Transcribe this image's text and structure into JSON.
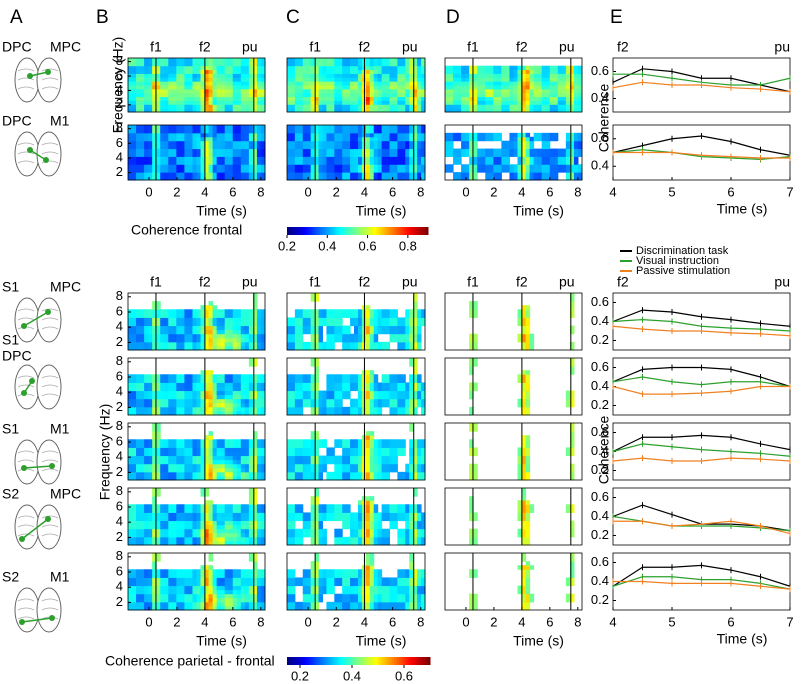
{
  "panel_labels": [
    "A",
    "B",
    "C",
    "D",
    "E"
  ],
  "pairs": [
    {
      "left": "DPC",
      "right": "MPC"
    },
    {
      "left": "DPC",
      "right": "M1"
    },
    {
      "left": "S1",
      "right": "MPC"
    },
    {
      "left": "S1",
      "right": "DPC"
    },
    {
      "left": "S1",
      "right": "M1"
    },
    {
      "left": "S2",
      "right": "MPC"
    },
    {
      "left": "S2",
      "right": "M1"
    }
  ],
  "heatmaps": {
    "event_labels": [
      "f1",
      "f2",
      "pu"
    ],
    "events": [
      0.5,
      4,
      7.5
    ],
    "ylabel": "Frequency (Hz)",
    "xlabel": "Time (s)",
    "xlim": [
      -1.5,
      8.3
    ],
    "xticks": [
      0,
      2,
      4,
      6,
      8
    ],
    "ylim": [
      1,
      8.5
    ],
    "yticks": [
      2,
      4,
      6,
      8
    ]
  },
  "colorbar_frontal": {
    "label": "Coherence frontal",
    "lim": [
      0.2,
      0.9
    ],
    "ticks": [
      0.2,
      0.4,
      0.6,
      0.8
    ]
  },
  "colorbar_parietal": {
    "label": "Coherence parietal - frontal",
    "lim": [
      0.15,
      0.7
    ],
    "ticks": [
      0.2,
      0.4,
      0.6
    ]
  },
  "coherence": {
    "ylabel": "Coherence",
    "xlabel": "Time (s)",
    "event_labels": [
      "f2",
      "pu"
    ],
    "x": [
      4,
      4.5,
      5,
      5.5,
      6,
      6.5,
      7
    ],
    "xlim": [
      4,
      7
    ],
    "xticks": [
      4,
      5,
      6,
      7
    ],
    "ylim_frontal": [
      0.3,
      0.7
    ],
    "yticks_frontal": [
      0.4,
      0.6
    ],
    "ylim_parietal": [
      0.1,
      0.7
    ],
    "yticks_parietal": [
      0.2,
      0.4,
      0.6
    ],
    "legend": [
      {
        "name": "Discrimination task",
        "color": "#000000"
      },
      {
        "name": "Visual instruction",
        "color": "#2ca02c"
      },
      {
        "name": "Passive stimulation",
        "color": "#f08020"
      }
    ],
    "plots": [
      [
        [
          0.52,
          0.62,
          0.6,
          0.55,
          0.55,
          0.5,
          0.45
        ],
        [
          0.58,
          0.58,
          0.55,
          0.52,
          0.5,
          0.5,
          0.55
        ],
        [
          0.48,
          0.52,
          0.5,
          0.5,
          0.48,
          0.47,
          0.45
        ]
      ],
      [
        [
          0.5,
          0.55,
          0.6,
          0.62,
          0.58,
          0.52,
          0.48
        ],
        [
          0.5,
          0.52,
          0.5,
          0.47,
          0.46,
          0.45,
          0.47
        ],
        [
          0.5,
          0.5,
          0.5,
          0.48,
          0.47,
          0.46,
          0.46
        ]
      ],
      [
        [
          0.4,
          0.52,
          0.5,
          0.45,
          0.42,
          0.38,
          0.35
        ],
        [
          0.4,
          0.42,
          0.4,
          0.35,
          0.33,
          0.32,
          0.3
        ],
        [
          0.35,
          0.32,
          0.3,
          0.3,
          0.28,
          0.27,
          0.25
        ]
      ],
      [
        [
          0.45,
          0.58,
          0.6,
          0.6,
          0.58,
          0.5,
          0.4
        ],
        [
          0.45,
          0.5,
          0.45,
          0.42,
          0.45,
          0.45,
          0.4
        ],
        [
          0.4,
          0.32,
          0.32,
          0.33,
          0.35,
          0.4,
          0.4
        ]
      ],
      [
        [
          0.4,
          0.55,
          0.55,
          0.57,
          0.55,
          0.48,
          0.42
        ],
        [
          0.4,
          0.48,
          0.45,
          0.42,
          0.4,
          0.38,
          0.35
        ],
        [
          0.3,
          0.33,
          0.3,
          0.3,
          0.33,
          0.32,
          0.3
        ]
      ],
      [
        [
          0.4,
          0.52,
          0.42,
          0.32,
          0.32,
          0.3,
          0.25
        ],
        [
          0.4,
          0.35,
          0.3,
          0.3,
          0.3,
          0.28,
          0.25
        ],
        [
          0.35,
          0.35,
          0.3,
          0.32,
          0.35,
          0.3,
          0.22
        ]
      ],
      [
        [
          0.35,
          0.55,
          0.55,
          0.57,
          0.52,
          0.45,
          0.35
        ],
        [
          0.35,
          0.45,
          0.45,
          0.42,
          0.42,
          0.38,
          0.32
        ],
        [
          0.4,
          0.4,
          0.38,
          0.38,
          0.38,
          0.35,
          0.32
        ]
      ]
    ]
  }
}
